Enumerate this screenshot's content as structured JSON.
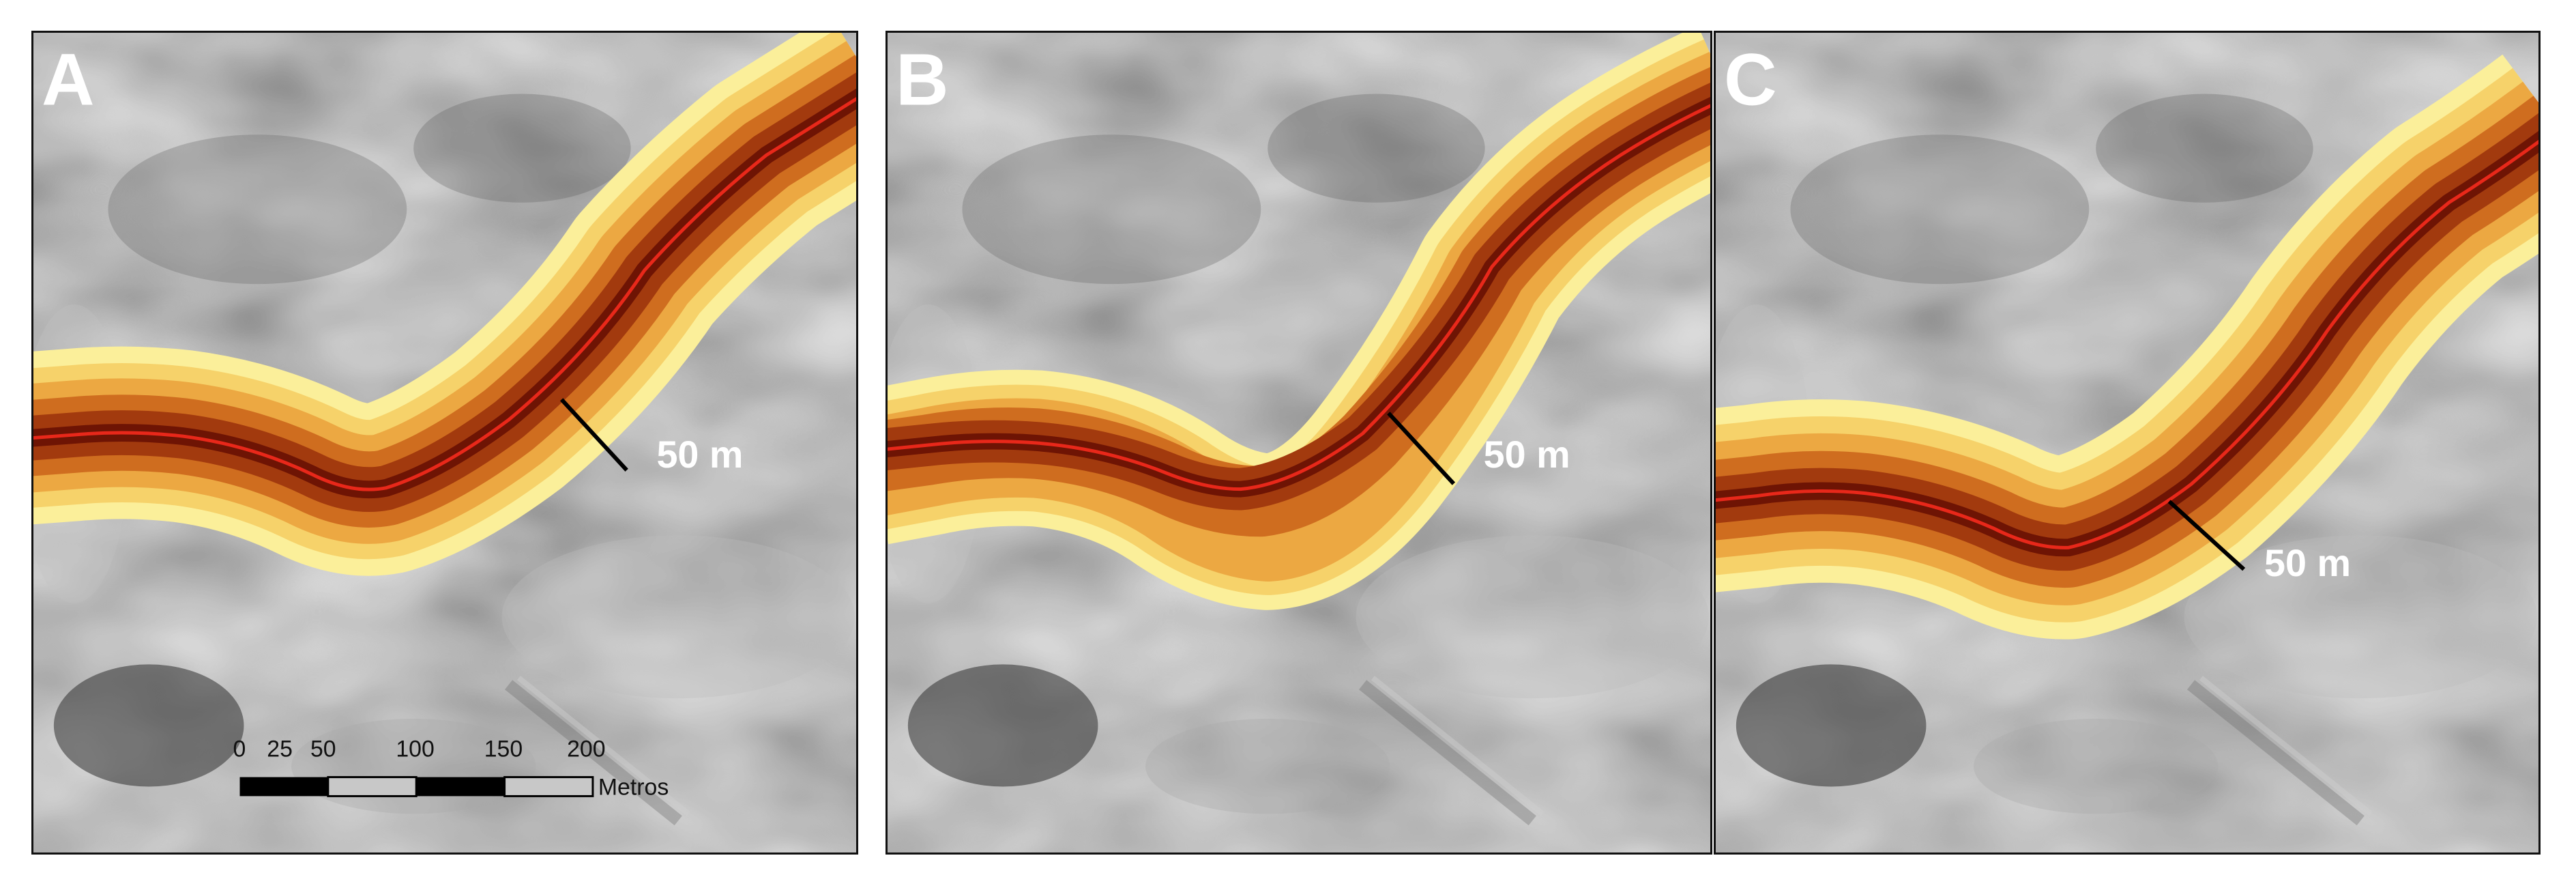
{
  "panels": [
    {
      "letter": "A",
      "distance_label": "50 m"
    },
    {
      "letter": "B",
      "distance_label": "50 m"
    },
    {
      "letter": "C",
      "distance_label": "50 m"
    }
  ],
  "scale_bar": {
    "ticks": [
      "0",
      "25",
      "50",
      "100",
      "150",
      "200"
    ],
    "unit": "Metros"
  },
  "colors": {
    "channel_line": "#e8281a",
    "buffer_outer": "#f9e890",
    "buffer_mid": "#e8a43a",
    "buffer_inner": "#8a1e08",
    "measure_line": "#000000",
    "label_text": "#ffffff"
  }
}
